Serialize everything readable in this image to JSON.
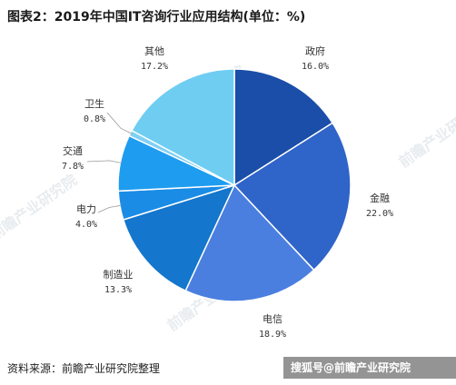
{
  "title": "图表2：2019年中国IT咨询行业应用结构(单位：%)",
  "source": "资料来源：前瞻产业研究院整理",
  "watermark": {
    "logo_text": "前瞻产业研究院",
    "bar_text": "搜狐号@前瞻产业研究院"
  },
  "chart_data": {
    "type": "pie",
    "title": "图表2：2019年中国IT咨询行业应用结构(单位：%)",
    "unit": "%",
    "slices": [
      {
        "label": "政府",
        "value": 16.0,
        "display": "16.0%",
        "color": "#1a4ea8"
      },
      {
        "label": "金融",
        "value": 22.0,
        "display": "22.0%",
        "color": "#2f64c9"
      },
      {
        "label": "电信",
        "value": 18.9,
        "display": "18.9%",
        "color": "#4a7fe0"
      },
      {
        "label": "制造业",
        "value": 13.3,
        "display": "13.3%",
        "color": "#1476cc"
      },
      {
        "label": "电力",
        "value": 4.0,
        "display": "4.0%",
        "color": "#1a8ce6"
      },
      {
        "label": "交通",
        "value": 7.8,
        "display": "7.8%",
        "color": "#1e9cf0"
      },
      {
        "label": "卫生",
        "value": 0.8,
        "display": "0.8%",
        "color": "#7fd0f5"
      },
      {
        "label": "其他",
        "value": 17.2,
        "display": "17.2%",
        "color": "#6fcdf2"
      }
    ]
  }
}
